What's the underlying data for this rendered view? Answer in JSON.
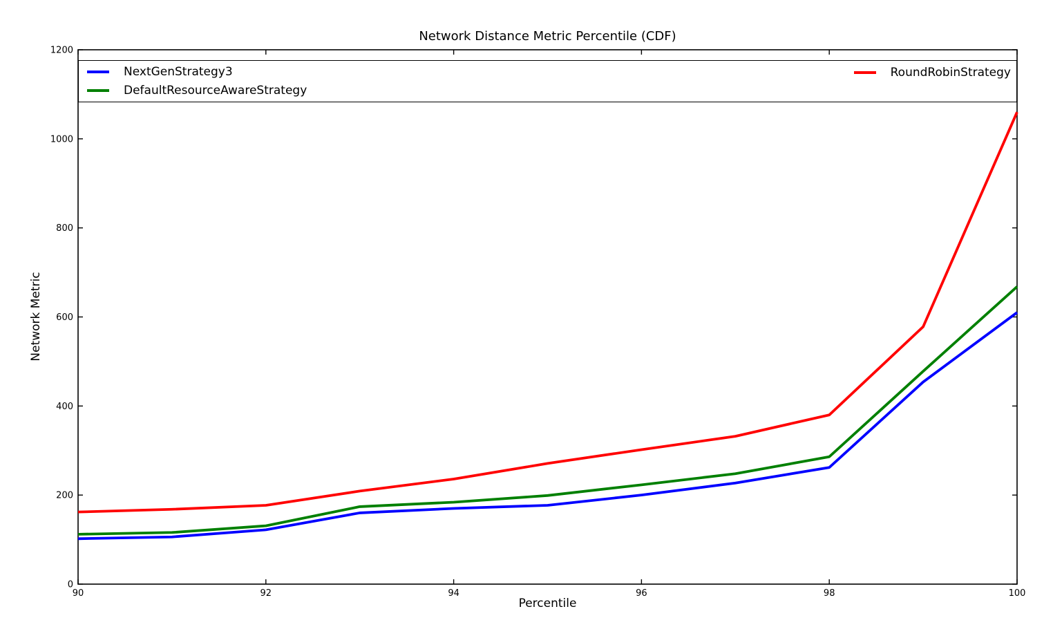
{
  "chart_data": {
    "type": "line",
    "title": "Network Distance Metric Percentile (CDF)",
    "xlabel": "Percentile",
    "ylabel": "Network Metric",
    "xlim": [
      90,
      100
    ],
    "ylim": [
      0,
      1200
    ],
    "xticks": [
      90,
      92,
      94,
      96,
      98,
      100
    ],
    "yticks": [
      0,
      200,
      400,
      600,
      800,
      1000,
      1200
    ],
    "grid": false,
    "legend_position": "top-inside, full plot width, 2 columns",
    "x": [
      90,
      91,
      92,
      93,
      94,
      95,
      96,
      97,
      98,
      99,
      100
    ],
    "series": [
      {
        "name": "NextGenStrategy3",
        "color": "#0000ff",
        "values": [
          102,
          106,
          122,
          160,
          170,
          177,
          200,
          227,
          262,
          454,
          610
        ]
      },
      {
        "name": "DefaultResourceAwareStrategy",
        "color": "#008000",
        "values": [
          112,
          116,
          131,
          174,
          184,
          199,
          223,
          248,
          286,
          478,
          668
        ]
      },
      {
        "name": "RoundRobinStrategy",
        "color": "#ff0000",
        "values": [
          162,
          168,
          177,
          209,
          236,
          271,
          302,
          332,
          380,
          578,
          1060
        ]
      }
    ]
  }
}
